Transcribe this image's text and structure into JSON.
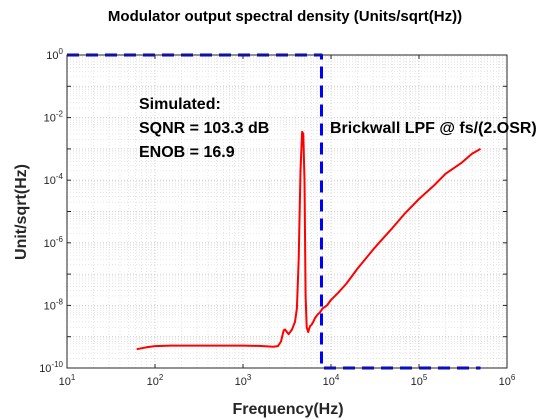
{
  "chart_data": {
    "type": "line",
    "title": "Modulator output spectral density (Units/sqrt(Hz))",
    "xlabel": "Frequency(Hz)",
    "ylabel": "Unit/sqrt(Hz)",
    "xscale": "log",
    "yscale": "log",
    "xlim": [
      10,
      1000000
    ],
    "ylim": [
      1e-10,
      1
    ],
    "grid": true,
    "x_tick_labels": [
      {
        "base": "10",
        "exp": "1"
      },
      {
        "base": "10",
        "exp": "2"
      },
      {
        "base": "10",
        "exp": "3"
      },
      {
        "base": "10",
        "exp": "4"
      },
      {
        "base": "10",
        "exp": "5"
      },
      {
        "base": "10",
        "exp": "6"
      }
    ],
    "y_tick_labels": [
      {
        "base": "10",
        "exp": "-10"
      },
      {
        "base": "10",
        "exp": "-8"
      },
      {
        "base": "10",
        "exp": "-6"
      },
      {
        "base": "10",
        "exp": "-4"
      },
      {
        "base": "10",
        "exp": "-2"
      },
      {
        "base": "10",
        "exp": "0"
      }
    ],
    "annotations": [
      "Simulated:",
      "SQNR = 103.3 dB",
      "ENOB = 16.9",
      "Brickwall LPF @ fs/(2.OSR)"
    ],
    "series": [
      {
        "color": "#ff0000",
        "style": "solid",
        "x": [
          62,
          80,
          100,
          150,
          200,
          400,
          700,
          1000,
          1500,
          1900,
          2200,
          2500,
          2700,
          2900,
          3000,
          3300,
          3600,
          3900,
          4100,
          4300,
          4500,
          4700,
          4850,
          5000,
          5150,
          5300,
          5500,
          5650,
          5800,
          6000,
          6300,
          6600,
          7000,
          7500,
          8000,
          9000,
          10000,
          12000,
          15000,
          20000,
          30000,
          40000,
          50000,
          70000,
          100000,
          150000,
          200000,
          300000,
          400000,
          500000
        ],
        "y": [
          4e-10,
          4.6e-10,
          5e-10,
          5.2e-10,
          5.2e-10,
          5.2e-10,
          5.2e-10,
          5.2e-10,
          5.1e-10,
          4.9e-10,
          4.8e-10,
          5e-10,
          7e-10,
          1.6e-09,
          1.7e-09,
          1.2e-09,
          1.7e-09,
          3e-09,
          8e-09,
          3e-07,
          0.0002,
          0.0035,
          0.003,
          0.0001,
          2e-08,
          2e-09,
          1.4e-09,
          1.8e-09,
          2.2e-09,
          2.4e-09,
          3e-09,
          4e-09,
          5e-09,
          6e-09,
          8e-09,
          1e-08,
          1.5e-08,
          2.5e-08,
          5e-08,
          1.5e-07,
          6e-07,
          1.5e-06,
          3e-06,
          9e-06,
          2.5e-05,
          7e-05,
          0.00016,
          0.00035,
          0.0007,
          0.001
        ]
      },
      {
        "name": "Brickwall LPF @ fs/(2.OSR)",
        "color": "#0000ff",
        "style": "dashed",
        "x": [
          10,
          7800,
          7800,
          500000
        ],
        "y": [
          1,
          1,
          1e-10,
          1e-10
        ]
      }
    ]
  }
}
